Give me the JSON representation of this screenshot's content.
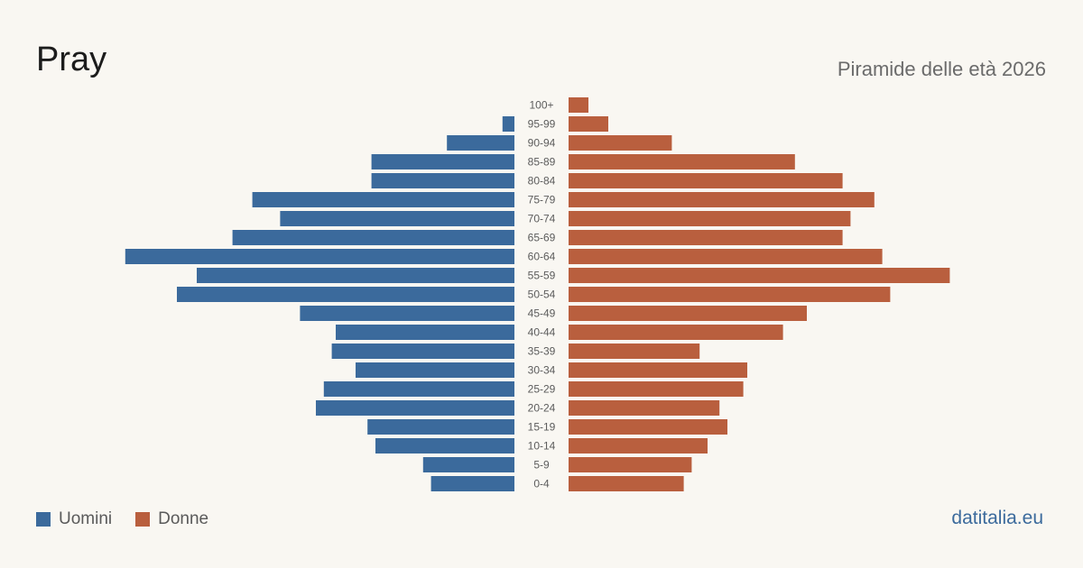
{
  "header": {
    "title": "Pray",
    "subtitle": "Piramide delle età 2026"
  },
  "legend": {
    "men_label": "Uomini",
    "women_label": "Donne"
  },
  "footer": {
    "brand": "datitalia.eu"
  },
  "colors": {
    "men": "#3b6a9c",
    "women": "#b95f3e",
    "background": "#f9f7f2"
  },
  "chart_data": {
    "type": "bar",
    "orientation": "population-pyramid",
    "title": "Pray",
    "subtitle": "Piramide delle età 2026",
    "categories": [
      "100+",
      "95-99",
      "90-94",
      "85-89",
      "80-84",
      "75-79",
      "70-74",
      "65-69",
      "60-64",
      "55-59",
      "50-54",
      "45-49",
      "40-44",
      "35-39",
      "30-34",
      "25-29",
      "20-24",
      "15-19",
      "10-14",
      "5-9",
      "0-4"
    ],
    "series": [
      {
        "name": "Uomini",
        "values": [
          0,
          3,
          17,
          36,
          36,
          66,
          59,
          71,
          98,
          80,
          85,
          54,
          45,
          46,
          40,
          48,
          50,
          37,
          35,
          23,
          21
        ]
      },
      {
        "name": "Donne",
        "values": [
          5,
          10,
          26,
          57,
          69,
          77,
          71,
          69,
          79,
          96,
          81,
          60,
          54,
          33,
          45,
          44,
          38,
          40,
          35,
          31,
          29
        ]
      }
    ],
    "xlim": [
      0,
      100
    ],
    "grid": false,
    "legend_position": "bottom-left"
  }
}
